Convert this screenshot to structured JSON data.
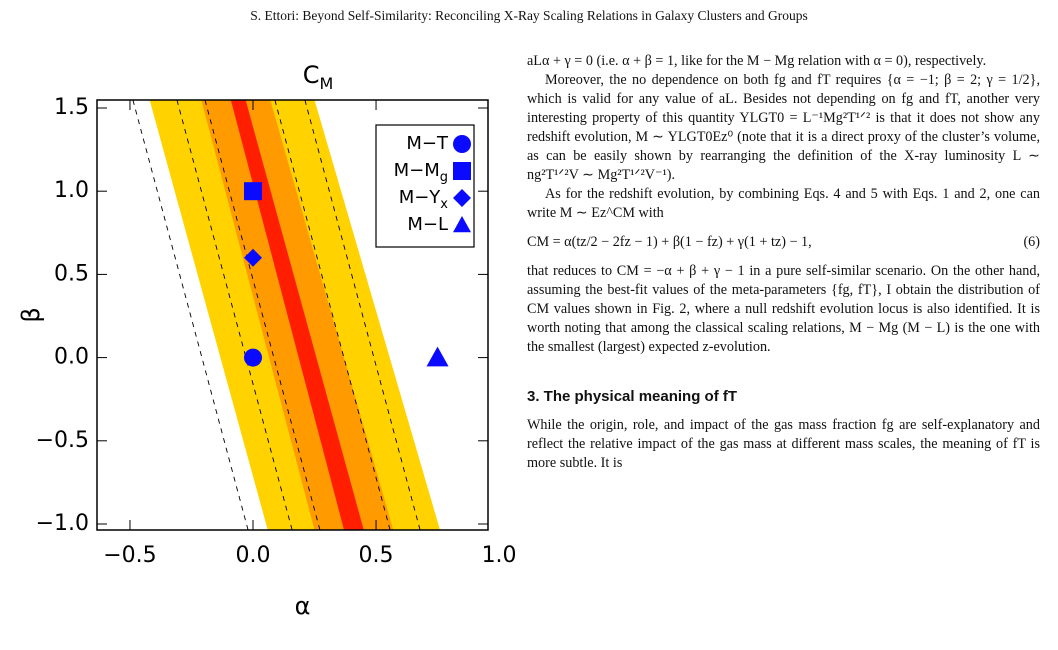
{
  "header": "S. Ettori: Beyond Self-Similarity: Reconciling X-Ray Scaling Relations in Galaxy Clusters and Groups",
  "chart_data": {
    "type": "scatter",
    "title": {
      "text": "C",
      "sub": "M"
    },
    "x_label": "α",
    "y_label": "β",
    "xlim": [
      -0.634,
      0.955
    ],
    "ylim": [
      -1.036,
      1.548
    ],
    "xticks": [
      {
        "value": -0.5,
        "label": "−0.5"
      },
      {
        "value": 0,
        "label": "0.0"
      },
      {
        "value": 0.5,
        "label": "0.5"
      },
      {
        "value": 1,
        "label": "1.0"
      }
    ],
    "yticks": [
      {
        "value": -1,
        "label": "−1.0"
      },
      {
        "value": -0.5,
        "label": "−0.5"
      },
      {
        "value": 0,
        "label": "0.0"
      },
      {
        "value": 0.5,
        "label": "0.5"
      },
      {
        "value": 1,
        "label": "1.0"
      },
      {
        "value": 1.5,
        "label": "1.5"
      }
    ],
    "bands": [
      {
        "color": "#ffd200",
        "x_top": [
          -0.42,
          0.25
        ],
        "x_bottom": [
          0.06,
          0.76
        ]
      },
      {
        "color": "#ff9a00",
        "x_top": [
          -0.21,
          0.07
        ],
        "x_bottom": [
          0.25,
          0.57
        ]
      },
      {
        "color": "#ff1e00",
        "x_top": [
          -0.09,
          -0.03
        ],
        "x_bottom": [
          0.37,
          0.45
        ]
      }
    ],
    "lines": [
      {
        "x_top": -0.488,
        "x_bottom": -0.02
      },
      {
        "x_top": -0.309,
        "x_bottom": 0.159
      },
      {
        "x_top": -0.195,
        "x_bottom": 0.272
      },
      {
        "x_top": 0.089,
        "x_bottom": 0.557
      },
      {
        "x_top": 0.211,
        "x_bottom": 0.679
      }
    ],
    "legend": "upper right",
    "series": [
      {
        "name": "M−T",
        "name_sub": "",
        "marker": "circle",
        "color": "#0a0aff",
        "x": [
          0
        ],
        "values": [
          0
        ]
      },
      {
        "name": "M−M",
        "name_sub": "g",
        "marker": "square",
        "color": "#0a0aff",
        "x": [
          0
        ],
        "values": [
          1.0
        ]
      },
      {
        "name": "M−Y",
        "name_sub": "x",
        "marker": "diamond",
        "color": "#0a0aff",
        "x": [
          0
        ],
        "values": [
          0.6
        ]
      },
      {
        "name": "M−L",
        "name_sub": "",
        "marker": "triangle",
        "color": "#0a0aff",
        "x": [
          0.75
        ],
        "values": [
          0
        ]
      }
    ]
  },
  "text": {
    "p1": "aLα + γ = 0 (i.e. α + β = 1, like for the M − Mg relation with α = 0), respectively.",
    "p2": "Moreover, the no dependence on both fg and fT requires {α = −1; β = 2; γ = 1/2}, which is valid for any value of aL. Besides not depending on fg and fT, another very interesting property of this quantity YLGT0 = L⁻¹Mg²T¹ᐟ² is that it does not show any redshift evolution, M ∼ YLGT0Ez⁰ (note that it is a direct proxy of the cluster’s volume, as can be easily shown by rearranging the definition of the X-ray luminosity L ∼ ng²T¹ᐟ²V ∼ Mg²T¹ᐟ²V⁻¹).",
    "p3": "As for the redshift evolution, by combining Eqs. 4 and 5 with Eqs. 1 and 2, one can write M ∼ Ez^CM with",
    "equation": "CM = α(tz/2 − 2fz − 1) + β(1 − fz) + γ(1 + tz) − 1,",
    "equation_number": "(6)",
    "p4": "that reduces to CM = −α + β + γ − 1 in a pure self-similar scenario. On the other hand, assuming the best-fit values of the meta-parameters {fg, fT}, I obtain the distribution of CM values shown in Fig. 2, where a null redshift evolution locus is also identified. It is worth noting that among the classical scaling relations, M − Mg (M − L) is the one with the smallest (largest) expected z-evolution.",
    "section": "3. The physical meaning of fT",
    "p5": "While the origin, role, and impact of the gas mass fraction fg are self-explanatory and reflect the relative impact of the gas mass at different mass scales, the meaning of fT is more subtle. It is"
  }
}
